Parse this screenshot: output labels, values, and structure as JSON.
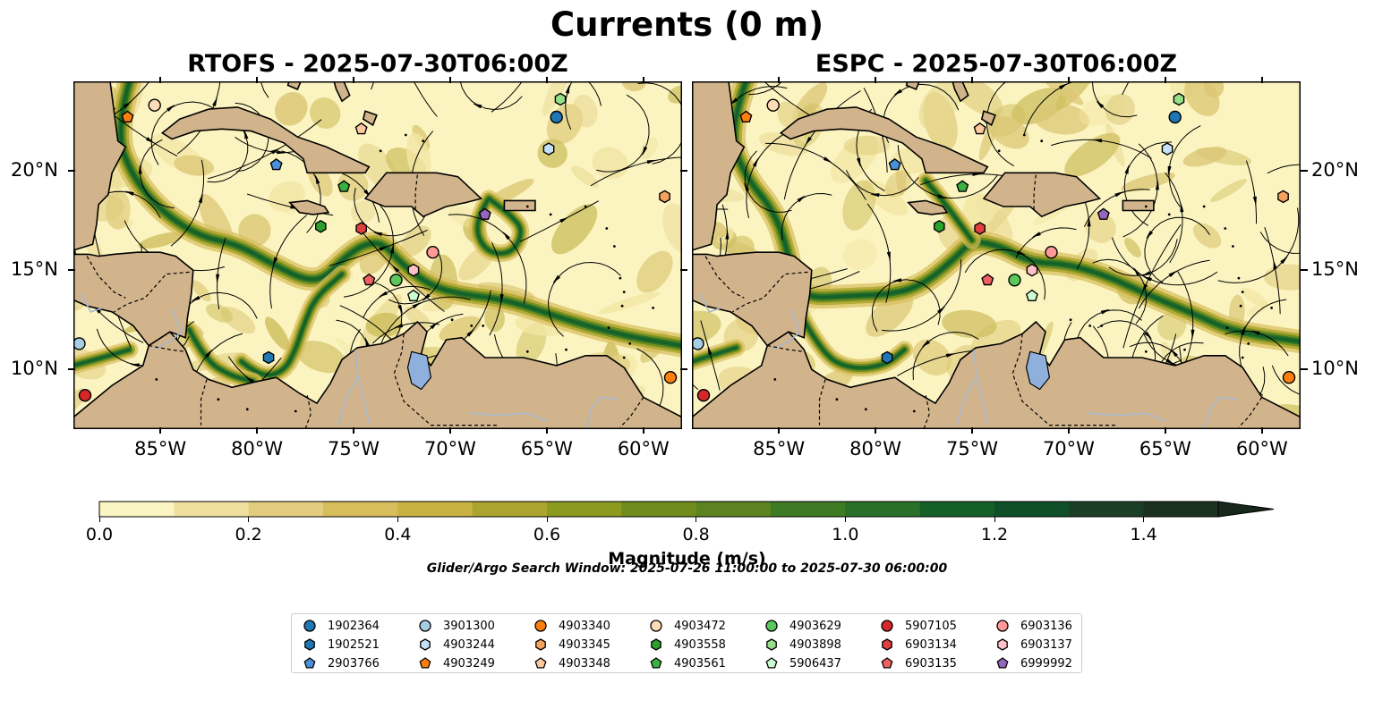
{
  "suptitle": "Currents (0 m)",
  "panels": [
    {
      "title": "RTOFS - 2025-07-30T06:00Z",
      "model": "rtofs"
    },
    {
      "title": "ESPC - 2025-07-30T06:00Z",
      "model": "espc"
    }
  ],
  "colors": {
    "land": "#d2b48c",
    "lake": "#8fb0dd",
    "river": "#a8b8cc",
    "ocean_low": "#fbf4c0",
    "jet": "#2f7a24"
  },
  "chart_data": {
    "type": "heatmap",
    "title": "Currents (0 m)",
    "x_axis": {
      "range": [
        -89.5,
        -58.0
      ],
      "ticks": [
        -85,
        -80,
        -75,
        -70,
        -65,
        -60
      ],
      "tick_labels": [
        "85°W",
        "80°W",
        "75°W",
        "70°W",
        "65°W",
        "60°W"
      ]
    },
    "y_axis": {
      "range": [
        7.0,
        24.5
      ],
      "ticks": [
        10,
        15,
        20
      ],
      "tick_labels": [
        "10°N",
        "15°N",
        "20°N"
      ]
    },
    "colorbar": {
      "label": "Magnitude (m/s)",
      "min": 0.0,
      "max": 1.5,
      "step": 0.1,
      "extend": "max",
      "ticks": [
        0.0,
        0.2,
        0.4,
        0.6,
        0.8,
        1.0,
        1.2,
        1.4
      ],
      "tick_labels": [
        "0.0",
        "0.2",
        "0.4",
        "0.6",
        "0.8",
        "1.0",
        "1.2",
        "1.4"
      ],
      "colors": [
        "#fbf5c3",
        "#f0e0a0",
        "#e3cc7e",
        "#d7bd5c",
        "#c8b342",
        "#aba42e",
        "#8c9a20",
        "#6f8c1c",
        "#5b8420",
        "#3f7a24",
        "#2a7028",
        "#136128",
        "#0f5028",
        "#1a3f26",
        "#1c3220",
        "#17281a"
      ]
    },
    "search_window": "Glider/Argo Search Window: 2025-07-26 11:00:00 to 2025-07-30 06:00:00",
    "platforms": [
      {
        "id": "1902364",
        "color": "#1f77b4",
        "marker": "circle",
        "lon": -64.5,
        "lat": 22.7
      },
      {
        "id": "1902521",
        "color": "#1f77b4",
        "marker": "hexagon",
        "lon": -79.4,
        "lat": 10.6
      },
      {
        "id": "2903766",
        "color": "#4a90d9",
        "marker": "pentagon",
        "lon": -79.0,
        "lat": 20.3
      },
      {
        "id": "3901300",
        "color": "#a6cee3",
        "marker": "circle",
        "lon": -89.2,
        "lat": 11.3
      },
      {
        "id": "4903244",
        "color": "#c6e0f5",
        "marker": "hexagon",
        "lon": -64.9,
        "lat": 21.1
      },
      {
        "id": "4903249",
        "color": "#ff7f0e",
        "marker": "pentagon",
        "lon": -86.7,
        "lat": 22.7
      },
      {
        "id": "4903340",
        "color": "#ff7f0e",
        "marker": "circle",
        "lon": -58.6,
        "lat": 9.6
      },
      {
        "id": "4903345",
        "color": "#f5a25c",
        "marker": "hexagon",
        "lon": -58.9,
        "lat": 18.7
      },
      {
        "id": "4903348",
        "color": "#ffc9a0",
        "marker": "pentagon",
        "lon": -74.6,
        "lat": 22.1
      },
      {
        "id": "4903472",
        "color": "#ffdcb8",
        "marker": "circle",
        "lon": -85.3,
        "lat": 23.3
      },
      {
        "id": "4903558",
        "color": "#2ca02c",
        "marker": "hexagon",
        "lon": -76.7,
        "lat": 17.2
      },
      {
        "id": "4903561",
        "color": "#3cb043",
        "marker": "pentagon",
        "lon": -75.5,
        "lat": 19.2
      },
      {
        "id": "4903629",
        "color": "#5cc85c",
        "marker": "circle",
        "lon": -72.8,
        "lat": 14.5
      },
      {
        "id": "4903898",
        "color": "#98df8a",
        "marker": "hexagon",
        "lon": -64.3,
        "lat": 23.6
      },
      {
        "id": "5906437",
        "color": "#ccffd0",
        "marker": "pentagon",
        "lon": -71.9,
        "lat": 13.7
      },
      {
        "id": "5907105",
        "color": "#d62728",
        "marker": "circle",
        "lon": -88.9,
        "lat": 8.7
      },
      {
        "id": "6903134",
        "color": "#e04040",
        "marker": "hexagon",
        "lon": -74.6,
        "lat": 17.1
      },
      {
        "id": "6903135",
        "color": "#f06060",
        "marker": "pentagon",
        "lon": -74.2,
        "lat": 14.5
      },
      {
        "id": "6903136",
        "color": "#ff9896",
        "marker": "circle",
        "lon": -70.9,
        "lat": 15.9
      },
      {
        "id": "6903137",
        "color": "#ffc0c8",
        "marker": "hexagon",
        "lon": -71.9,
        "lat": 15.0
      },
      {
        "id": "6999992",
        "color": "#9467bd",
        "marker": "pentagon",
        "lon": -68.2,
        "lat": 17.8
      }
    ]
  }
}
